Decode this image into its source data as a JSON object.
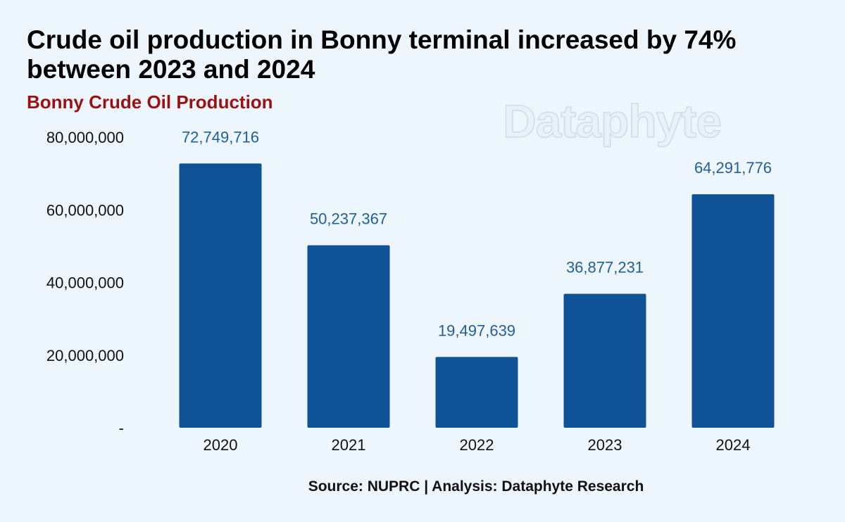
{
  "header": {
    "title": "Crude oil production in Bonny terminal increased by 74% between 2023 and 2024",
    "subtitle": "Bonny Crude Oil Production"
  },
  "watermark": "Dataphyte",
  "footer": {
    "source": "Source: NUPRC | Analysis: Dataphyte Research"
  },
  "colors": {
    "bar": "#0f5296",
    "data_label": "#1f5f99",
    "subtitle": "#9b1111",
    "background": "#eef6fd"
  },
  "chart_data": {
    "type": "bar",
    "title": "Crude oil production in Bonny terminal increased by 74% between 2023 and 2024",
    "subtitle": "Bonny Crude Oil Production",
    "categories": [
      "2020",
      "2021",
      "2022",
      "2023",
      "2024"
    ],
    "values": [
      72749716,
      50237367,
      19497639,
      36877231,
      64291776
    ],
    "value_labels": [
      "72,749,716",
      "50,237,367",
      "19,497,639",
      "36,877,231",
      "64,291,776"
    ],
    "y_ticks": [
      0,
      20000000,
      40000000,
      60000000,
      80000000
    ],
    "y_tick_labels": [
      "-",
      "20,000,000",
      "40,000,000",
      "60,000,000",
      "80,000,000"
    ],
    "ylim": [
      0,
      80000000
    ],
    "grid": false,
    "legend": "none"
  }
}
